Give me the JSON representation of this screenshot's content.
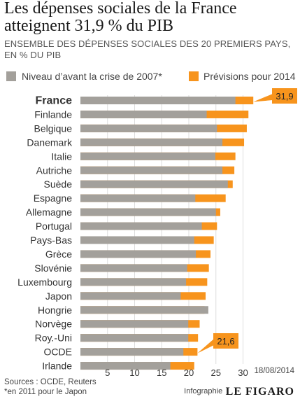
{
  "title": "Les dépenses sociales de la France  atteignent 31,9 % du PIB",
  "subtitle": "ENSEMBLE DES DÉPENSES SOCIALES DES 20 PREMIERS PAYS, EN % DU PIB",
  "legend": {
    "pre": "Niveau d’avant la crise de 2007*",
    "post": "Prévisions pour 2014"
  },
  "colors": {
    "pre": "#a3a09b",
    "post": "#f7941d",
    "grid": "#dddddd",
    "text": "#333333"
  },
  "footer": {
    "source": "Sources : OCDE, Reuters",
    "note": "*en 2011 pour le Japon",
    "date": "18/08/2014",
    "infographie": "Infographie",
    "logo": "LE FIGARO"
  },
  "chart_data": {
    "type": "bar",
    "orientation": "horizontal",
    "xlim": [
      0,
      33
    ],
    "ticks": [
      5,
      10,
      15,
      20,
      25,
      30
    ],
    "grid": true,
    "legend_position": "top",
    "categories": [
      "France",
      "Finlande",
      "Belgique",
      "Danemark",
      "Italie",
      "Autriche",
      "Suède",
      "Espagne",
      "Allemagne",
      "Portugal",
      "Pays-Bas",
      "Grèce",
      "Slovénie",
      "Luxembourg",
      "Japon",
      "Hongrie",
      "Norvège",
      "Roy.-Uni",
      "OCDE",
      "Irlande"
    ],
    "series": [
      {
        "name": "Niveau d’avant la crise de 2007*",
        "values": [
          28.6,
          23.3,
          25.2,
          26.2,
          24.9,
          26.2,
          27.2,
          21.2,
          25.0,
          22.4,
          21.0,
          21.3,
          19.7,
          19.5,
          18.5,
          23.6,
          19.9,
          19.9,
          19.0,
          16.6
        ]
      },
      {
        "name": "Prévisions pour 2014",
        "values": [
          31.9,
          31.0,
          30.7,
          30.2,
          28.6,
          28.4,
          28.1,
          26.8,
          25.8,
          25.2,
          24.6,
          24.0,
          23.7,
          23.4,
          23.1,
          22.9,
          22.0,
          21.7,
          21.6,
          21.0
        ]
      }
    ],
    "callouts": [
      {
        "category": "France",
        "label": "31,9"
      },
      {
        "category": "OCDE",
        "label": "21,6"
      }
    ]
  }
}
